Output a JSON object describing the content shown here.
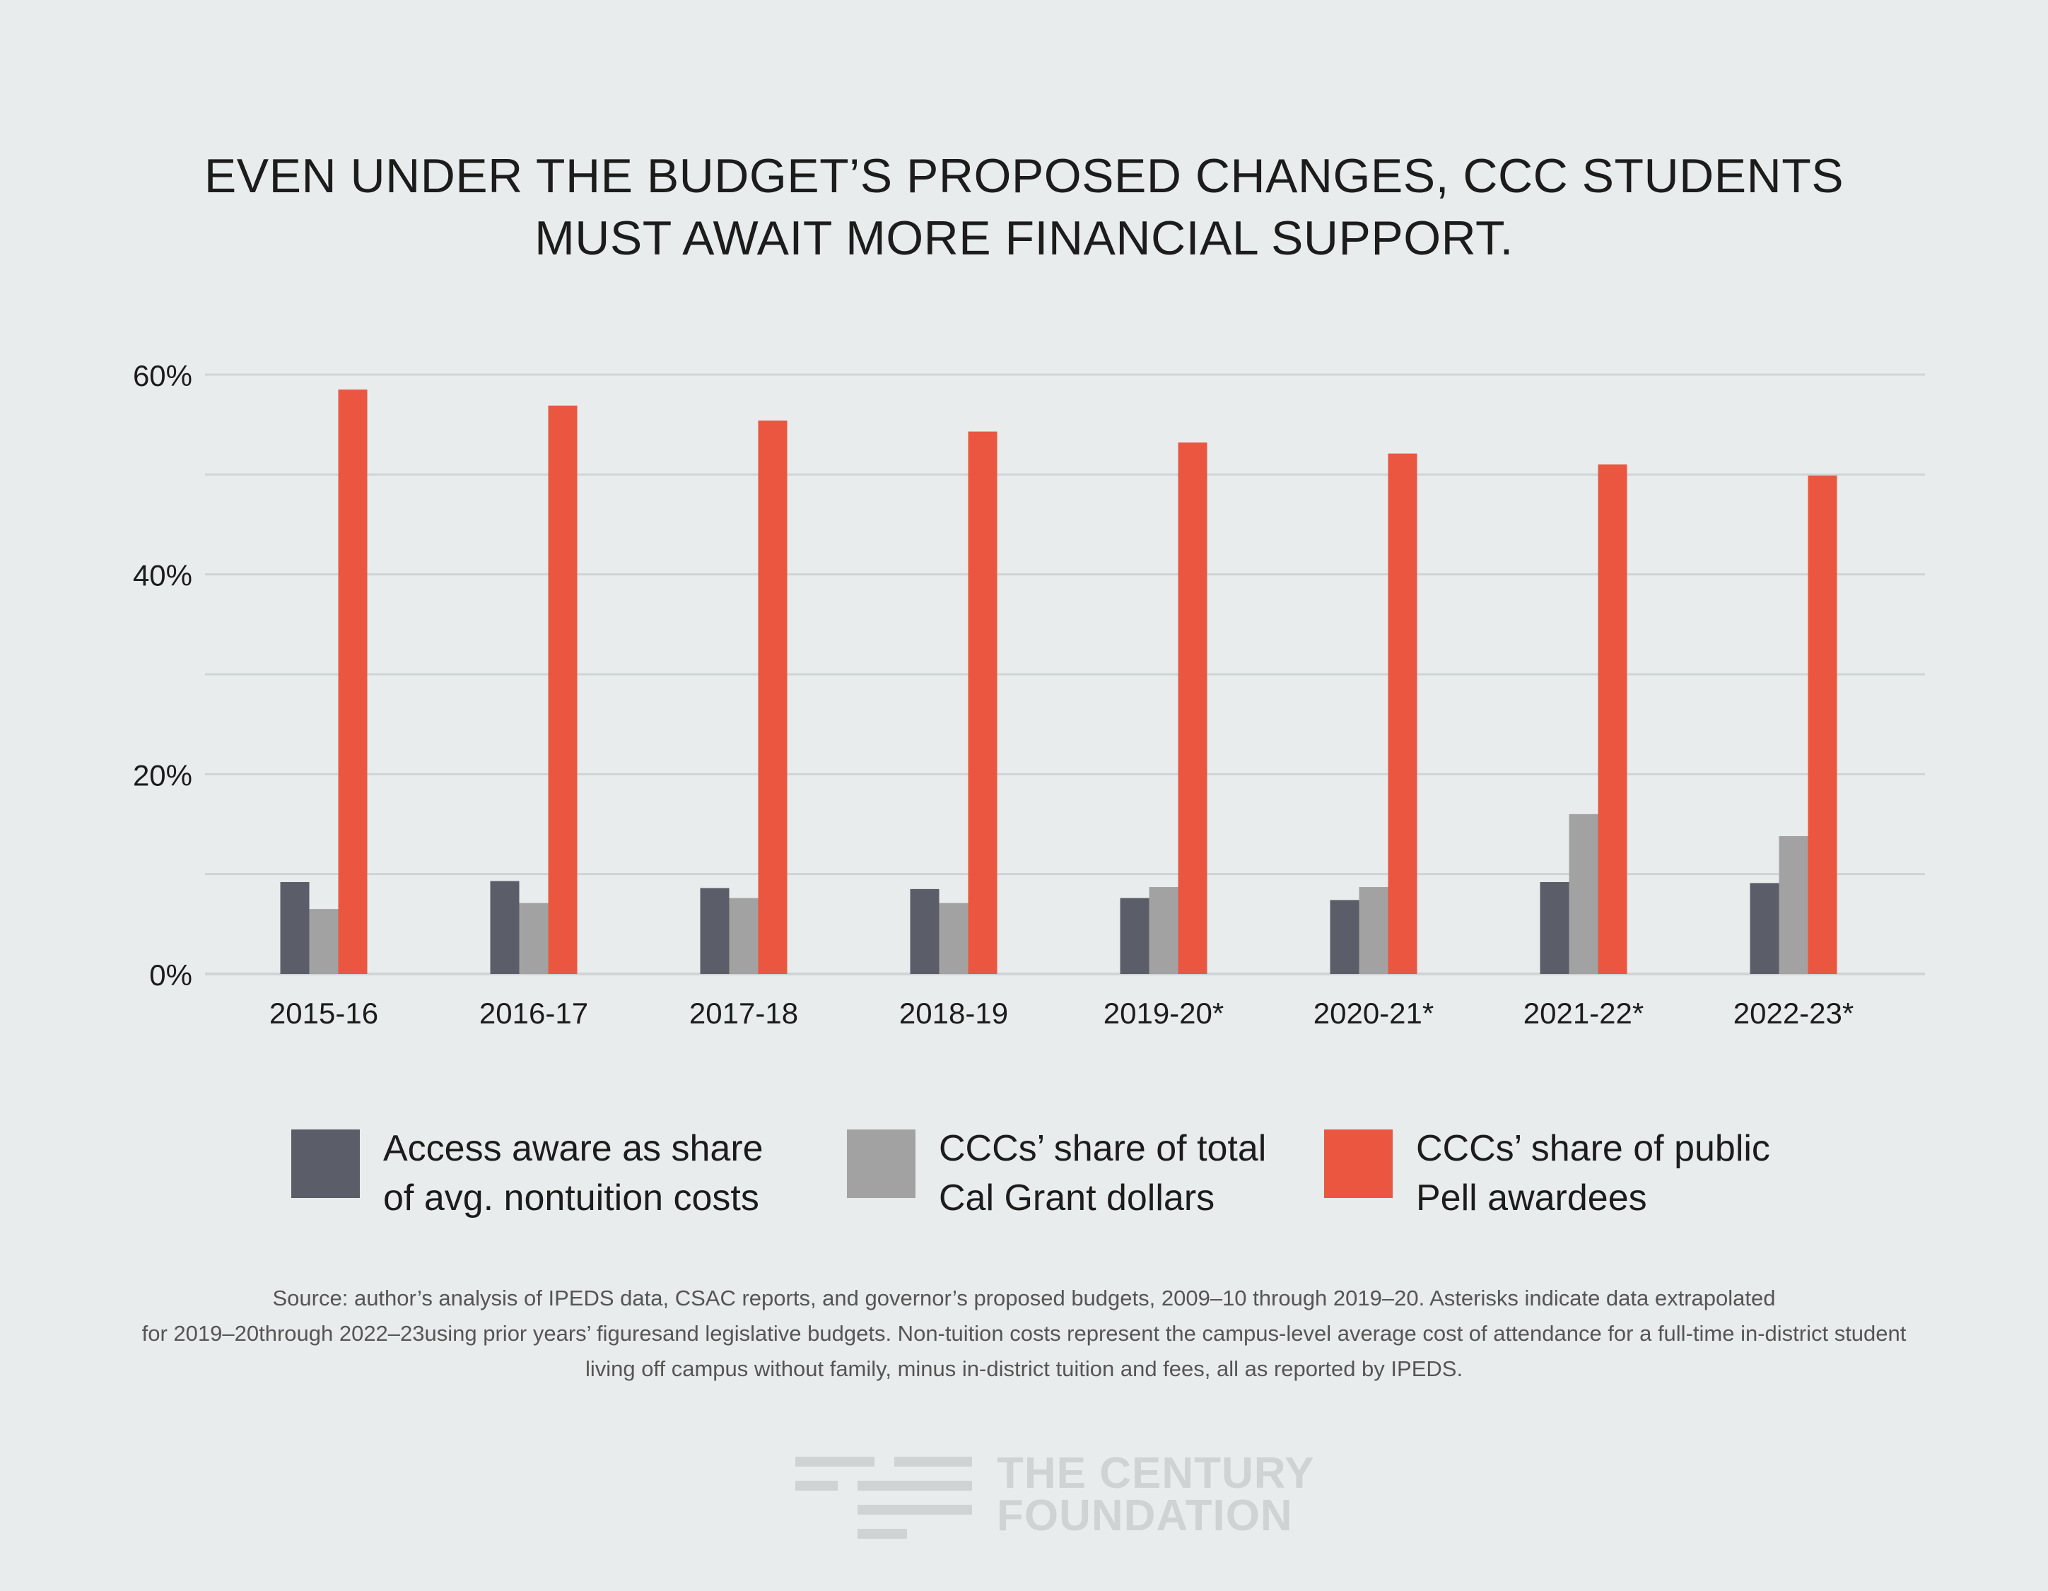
{
  "title": {
    "line1": "EVEN UNDER THE BUDGET’S PROPOSED CHANGES, CCC STUDENTS",
    "line2": "MUST AWAIT MORE FINANCIAL SUPPORT."
  },
  "colors": {
    "access": "#5b5e68",
    "calgrant": "#a2a2a2",
    "pell": "#eb5640",
    "grid": "#cfd4d6",
    "background": "#e9ecec"
  },
  "chart_data": {
    "type": "bar",
    "title": "EVEN UNDER THE BUDGET’S PROPOSED CHANGES, CCC STUDENTS MUST AWAIT MORE FINANCIAL SUPPORT.",
    "categories": [
      "2015-16",
      "2016-17",
      "2017-18",
      "2018-19",
      "2019-20*",
      "2020-21*",
      "2021-22*",
      "2022-23*"
    ],
    "series": [
      {
        "name": "Access aware as share of avg. nontuition costs",
        "values": [
          9.2,
          9.3,
          8.6,
          8.5,
          7.6,
          7.4,
          9.2,
          9.1
        ]
      },
      {
        "name": "CCCs’ share of total Cal Grant dollars",
        "values": [
          6.5,
          7.1,
          7.6,
          7.1,
          8.7,
          8.7,
          16.0,
          13.8
        ]
      },
      {
        "name": "CCCs’ share of public Pell awardees",
        "values": [
          58.5,
          56.9,
          55.4,
          54.3,
          53.2,
          52.1,
          51.0,
          49.9
        ]
      }
    ],
    "yticks": [
      "0%",
      "20%",
      "40%",
      "60%"
    ],
    "ylim": [
      0,
      60
    ],
    "xlabel": "",
    "ylabel": "",
    "grid": true
  },
  "legend": [
    {
      "line1": "Access aware as share",
      "line2": "of avg. nontuition costs"
    },
    {
      "line1": "CCCs’ share of total",
      "line2": "Cal Grant dollars"
    },
    {
      "line1": "CCCs’ share of public",
      "line2": "Pell awardees"
    }
  ],
  "source": {
    "line1": "Source: author’s analysis of IPEDS data, CSAC reports, and governor’s proposed budgets, 2009–10 through 2019–20. Asterisks indicate data extrapolated",
    "line2": "for 2019–20through 2022–23using prior years’ figuresand legislative budgets. Non-tuition costs represent the campus-level average cost of attendance for a full-time in-district student",
    "line3": "living off campus without family, minus in-district tuition and fees, all as reported by IPEDS."
  },
  "logo": {
    "line1": "THE CENTURY",
    "line2": "FOUNDATION"
  }
}
